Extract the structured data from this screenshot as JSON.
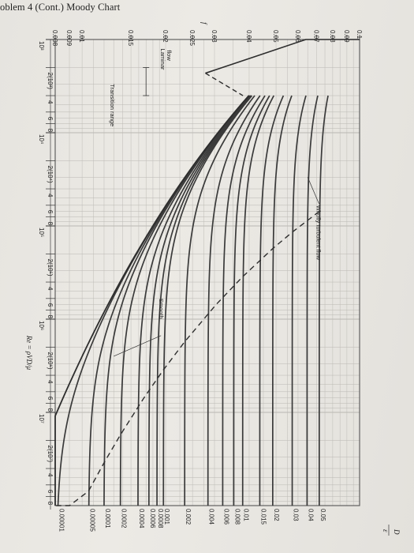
{
  "header": {
    "title": "oblem 4 (Cont.) Moody Chart"
  },
  "chart_data": {
    "type": "line",
    "title": "Moody Chart",
    "xlabel": "Re = ρVD/μ",
    "ylabel_left": "f",
    "ylabel_right": "ε/D",
    "x_scale": "log",
    "y_scale": "log",
    "xlim": [
      1000,
      100000000
    ],
    "ylim": [
      0.008,
      0.1
    ],
    "re_ticks": [
      {
        "v": 1000,
        "t": "10³",
        "major": true
      },
      {
        "v": 2000,
        "t": "2(10³)",
        "major": false
      },
      {
        "v": 4000,
        "t": "4",
        "major": false
      },
      {
        "v": 6000,
        "t": "6",
        "major": false
      },
      {
        "v": 8000,
        "t": "8",
        "major": false
      },
      {
        "v": 10000,
        "t": "10⁴",
        "major": true
      },
      {
        "v": 20000,
        "t": "2(10⁴)",
        "major": false
      },
      {
        "v": 40000,
        "t": "4",
        "major": false
      },
      {
        "v": 60000,
        "t": "6",
        "major": false
      },
      {
        "v": 80000,
        "t": "8",
        "major": false
      },
      {
        "v": 100000,
        "t": "10⁵",
        "major": true
      },
      {
        "v": 200000,
        "t": "2(10⁵)",
        "major": false
      },
      {
        "v": 400000,
        "t": "4",
        "major": false
      },
      {
        "v": 600000,
        "t": "6",
        "major": false
      },
      {
        "v": 800000,
        "t": "8",
        "major": false
      },
      {
        "v": 1000000,
        "t": "10⁶",
        "major": true
      },
      {
        "v": 2000000,
        "t": "2(10⁶)",
        "major": false
      },
      {
        "v": 4000000,
        "t": "4",
        "major": false
      },
      {
        "v": 6000000,
        "t": "6",
        "major": false
      },
      {
        "v": 8000000,
        "t": "8",
        "major": false
      },
      {
        "v": 10000000,
        "t": "10⁷",
        "major": true
      },
      {
        "v": 20000000,
        "t": "2(10⁷)",
        "major": false
      },
      {
        "v": 40000000,
        "t": "4",
        "major": false
      },
      {
        "v": 60000000,
        "t": "6",
        "major": false
      },
      {
        "v": 80000000,
        "t": "8",
        "major": false
      }
    ],
    "f_ticks": [
      {
        "v": 0.1,
        "t": "0.1"
      },
      {
        "v": 0.09,
        "t": "0.09"
      },
      {
        "v": 0.08,
        "t": "0.08"
      },
      {
        "v": 0.07,
        "t": "0.07"
      },
      {
        "v": 0.06,
        "t": "0.06"
      },
      {
        "v": 0.05,
        "t": "0.05"
      },
      {
        "v": 0.04,
        "t": "0.04"
      },
      {
        "v": 0.03,
        "t": "0.03"
      },
      {
        "v": 0.025,
        "t": "0.025"
      },
      {
        "v": 0.02,
        "t": "0.02"
      },
      {
        "v": 0.015,
        "t": "0.015"
      },
      {
        "v": 0.01,
        "t": "0.01"
      },
      {
        "v": 0.009,
        "t": "0.009"
      },
      {
        "v": 0.008,
        "t": "0.008"
      }
    ],
    "roughness_labels": [
      {
        "v": 0.05,
        "t": "0.05"
      },
      {
        "v": 0.04,
        "t": "0.04"
      },
      {
        "v": 0.03,
        "t": "0.03"
      },
      {
        "v": 0.02,
        "t": "0.02"
      },
      {
        "v": 0.015,
        "t": "0.015"
      },
      {
        "v": 0.01,
        "t": "0.01"
      },
      {
        "v": 0.008,
        "t": "0.008"
      },
      {
        "v": 0.006,
        "t": "0.006"
      },
      {
        "v": 0.004,
        "t": "0.004"
      },
      {
        "v": 0.002,
        "t": "0.002"
      },
      {
        "v": 0.001,
        "t": "0.001"
      },
      {
        "v": 0.0008,
        "t": "0.0008"
      },
      {
        "v": 0.0006,
        "t": "0.0006"
      },
      {
        "v": 0.0004,
        "t": "0.0004"
      },
      {
        "v": 0.0002,
        "t": "0.0002"
      },
      {
        "v": 0.0001,
        "t": "0.0001"
      },
      {
        "v": 5e-05,
        "t": "0.00005"
      },
      {
        "v": 1e-05,
        "t": "0.00001"
      }
    ],
    "series": [
      {
        "name": "Laminar flow",
        "x": [
          600,
          800,
          1000,
          1500,
          2000,
          2300
        ],
        "y": [
          0.1067,
          0.08,
          0.064,
          0.0427,
          0.032,
          0.0278
        ]
      },
      {
        "name": "Smooth",
        "x": [
          4000,
          10000,
          100000,
          1000000,
          10000000,
          100000000
        ],
        "y": [
          0.0399,
          0.0309,
          0.018,
          0.0116,
          0.0081,
          0.0059
        ]
      }
    ],
    "annotations": {
      "laminar": [
        "Laminar",
        "flow"
      ],
      "transition": "Transition range",
      "wholly": "Wholly turbulent flow",
      "smooth": "Smooth",
      "f_mark": "f",
      "eps_num": "ε",
      "eps_den": "D"
    },
    "grid": true,
    "orientation": "rotated 90° clockwise"
  }
}
